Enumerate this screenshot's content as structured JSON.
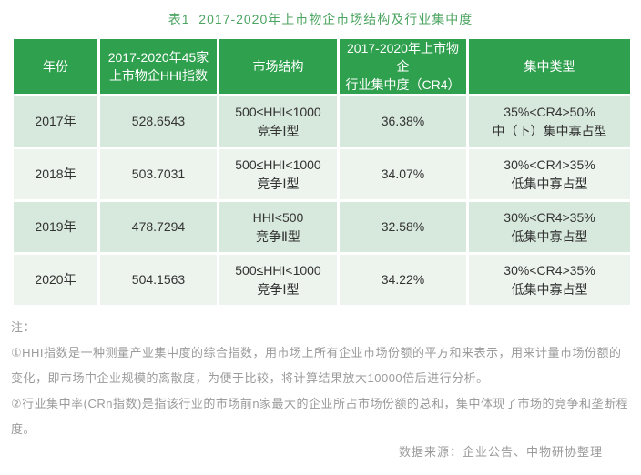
{
  "title": "表1  2017-2020年上市物企市场结构及行业集中度",
  "colors": {
    "header_green": "#2fa04e",
    "row_odd_green": "#d7e8dc",
    "row_even_green": "#edf4ee",
    "title_green": "#4da562",
    "note_gray": "#9b9b9b",
    "cell_text": "#333333"
  },
  "table": {
    "headers": [
      "年份",
      "2017-2020年45家\n上市物企HHI指数",
      "市场结构",
      "2017-2020年上市物企\n行业集中度（CR4）",
      "集中类型"
    ],
    "rows": [
      {
        "year": "2017年",
        "hhi": "528.6543",
        "structure": "500≤HHI<1000\n竞争Ⅰ型",
        "cr4": "36.38%",
        "type": "35%<CR4>50%\n中（下）集中寡占型"
      },
      {
        "year": "2018年",
        "hhi": "503.7031",
        "structure": "500≤HHI<1000\n竞争Ⅰ型",
        "cr4": "34.07%",
        "type": "30%<CR4>35%\n低集中寡占型"
      },
      {
        "year": "2019年",
        "hhi": "478.7294",
        "structure": "HHI<500\n竞争Ⅱ型",
        "cr4": "32.58%",
        "type": "30%<CR4>35%\n低集中寡占型"
      },
      {
        "year": "2020年",
        "hhi": "504.1563",
        "structure": "500≤HHI<1000\n竞争Ⅰ型",
        "cr4": "34.22%",
        "type": "30%<CR4>35%\n低集中寡占型"
      }
    ]
  },
  "notes": {
    "label": "注：",
    "items": [
      "①HHI指数是一种测量产业集中度的综合指数，用市场上所有企业市场份额的平方和来表示，用来计量市场份额的变化，即市场中企业规模的离散度，为便于比较，将计算结果放大10000倍后进行分析。",
      "②行业集中率(CRn指数)是指该行业的市场前n家最大的企业所占市场份额的总和，集中体现了市场的竞争和垄断程度。"
    ]
  },
  "source": "数据来源：企业公告、中物研协整理"
}
